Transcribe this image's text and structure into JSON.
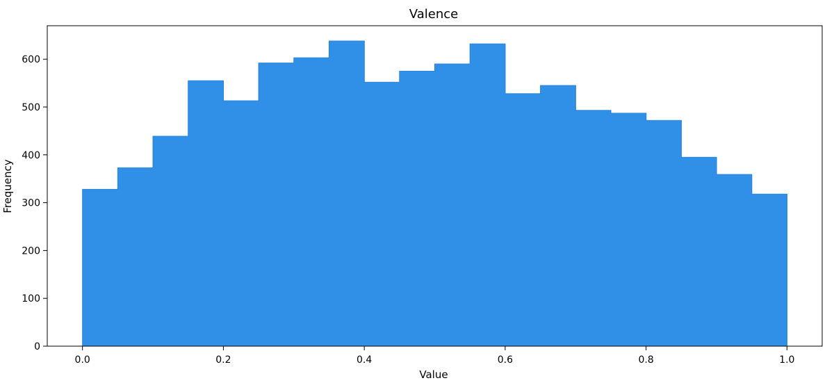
{
  "chart_data": {
    "type": "bar",
    "title": "Valence",
    "xlabel": "Value",
    "ylabel": "Frequency",
    "bin_edges": [
      0.0,
      0.05,
      0.1,
      0.15,
      0.2,
      0.25,
      0.3,
      0.35,
      0.4,
      0.45,
      0.5,
      0.55,
      0.6,
      0.65,
      0.7,
      0.75,
      0.8,
      0.85,
      0.9,
      0.95,
      1.0
    ],
    "values": [
      328,
      373,
      439,
      555,
      513,
      592,
      603,
      638,
      552,
      575,
      590,
      632,
      528,
      545,
      493,
      487,
      472,
      395,
      359,
      318
    ],
    "xlim": [
      -0.05,
      1.05
    ],
    "ylim": [
      0,
      670
    ],
    "xticks": [
      0.0,
      0.2,
      0.4,
      0.6,
      0.8,
      1.0
    ],
    "xtick_labels": [
      "0.0",
      "0.2",
      "0.4",
      "0.6",
      "0.8",
      "1.0"
    ],
    "yticks": [
      0,
      100,
      200,
      300,
      400,
      500,
      600
    ],
    "ytick_labels": [
      "0",
      "100",
      "200",
      "300",
      "400",
      "500",
      "600"
    ],
    "bar_color": "#3090e8",
    "grid": false,
    "legend": null
  }
}
